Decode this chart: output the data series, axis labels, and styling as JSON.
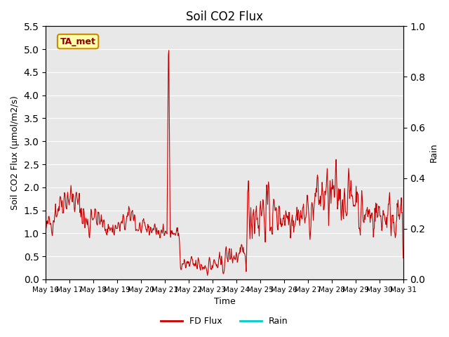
{
  "title": "Soil CO2 Flux",
  "ylabel_left": "Soil CO2 Flux (μmol/m2/s)",
  "ylabel_right": "Rain",
  "xlabel": "Time",
  "ylim_left": [
    0.0,
    5.5
  ],
  "ylim_right": [
    0.0,
    1.0
  ],
  "yticks_left": [
    0.0,
    0.5,
    1.0,
    1.5,
    2.0,
    2.5,
    3.0,
    3.5,
    4.0,
    4.5,
    5.0,
    5.5
  ],
  "yticks_right": [
    0.0,
    0.2,
    0.4,
    0.6,
    0.8,
    1.0
  ],
  "xtick_labels": [
    "May 16",
    "May 17",
    "May 18",
    "May 19",
    "May 20",
    "May 21",
    "May 22",
    "May 23",
    "May 24",
    "May 25",
    "May 26",
    "May 27",
    "May 28",
    "May 29",
    "May 30",
    "May 31"
  ],
  "flux_color": "#cc0000",
  "rain_color": "#00cccc",
  "bg_color": "#e8e8e8",
  "annotation_label": "TA_met",
  "annotation_bg": "#ffffaa",
  "annotation_border": "#cc8800",
  "legend_entries": [
    "FD Flux",
    "Rain"
  ],
  "legend_colors": [
    "#cc0000",
    "#00cccc"
  ]
}
